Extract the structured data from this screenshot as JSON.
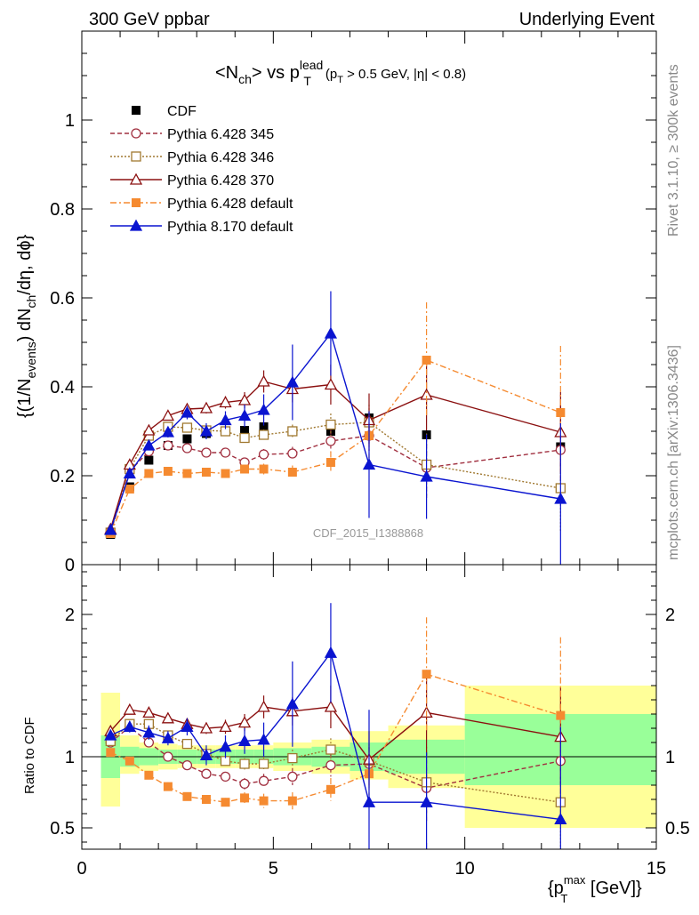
{
  "header": {
    "left": "300 GeV ppbar",
    "right": "Underlying Event"
  },
  "side": {
    "rivet": "Rivet 3.1.10, ≥ 300k events",
    "mcplots": "mcplots.cern.ch [arXiv:1306.3436]"
  },
  "watermark": "CDF_2015_I1388868",
  "colors": {
    "band_inner": "#99ff99",
    "band_outer": "#ffff99"
  },
  "chart_data": [
    {
      "type": "line",
      "title": {
        "main": "<N",
        "sub1": "ch",
        "mid": "> vs p",
        "sup": "lead",
        "sub2": "T",
        "cond": "(p",
        "cond_sub": "T",
        "cond_rest": " > 0.5 GeV, |η| < 0.8)"
      },
      "ylabel": {
        "a": "{(1/N",
        "a_sub": "events",
        "b": ") dN",
        "b_sub": "ch",
        "c": "/dη, dϕ}"
      },
      "xlim": [
        0,
        15
      ],
      "ylim": [
        0,
        1.2
      ],
      "yticks": [
        {
          "v": 0.2,
          "label": "0.2"
        },
        {
          "v": 0.4,
          "label": "0.4"
        },
        {
          "v": 0.6,
          "label": "0.6"
        },
        {
          "v": 0.8,
          "label": "0.8"
        },
        {
          "v": 1.0,
          "label": "1"
        }
      ],
      "ytick_zero": "0",
      "legend_position": "top-left",
      "series": [
        {
          "name": "CDF",
          "color": "#000000",
          "marker": "square-filled",
          "dash": "none",
          "x": [
            0.75,
            1.25,
            1.75,
            2.25,
            2.75,
            3.25,
            3.75,
            4.25,
            4.75,
            5.5,
            6.5,
            7.5,
            9.0,
            12.5
          ],
          "y": [
            0.068,
            0.175,
            0.235,
            0.268,
            0.283,
            0.295,
            0.3,
            0.302,
            0.31,
            0.3,
            0.3,
            0.33,
            0.292,
            0.265
          ],
          "err": [
            0.01,
            0.01,
            0.01,
            0.01,
            0.01,
            0.01,
            0.01,
            0.01,
            0.01,
            0.01,
            0.01,
            0.01,
            0.01,
            0.01
          ]
        },
        {
          "name": "Pythia 6.428 345",
          "color": "#a13040",
          "marker": "circle-open",
          "dash": "5,3",
          "x": [
            0.75,
            1.25,
            1.75,
            2.25,
            2.75,
            3.25,
            3.75,
            4.25,
            4.75,
            5.5,
            6.5,
            7.5,
            9.0,
            12.5
          ],
          "y": [
            0.072,
            0.21,
            0.255,
            0.268,
            0.262,
            0.252,
            0.252,
            0.23,
            0.248,
            0.25,
            0.278,
            0.29,
            0.218,
            0.258
          ],
          "err": [
            0.005,
            0.005,
            0.006,
            0.006,
            0.007,
            0.008,
            0.009,
            0.01,
            0.012,
            0.015,
            0.025,
            0.04,
            0.07,
            0.1
          ]
        },
        {
          "name": "Pythia 6.428 346",
          "color": "#a07830",
          "marker": "square-open",
          "dash": "2,2",
          "x": [
            0.75,
            1.25,
            1.75,
            2.25,
            2.75,
            3.25,
            3.75,
            4.25,
            4.75,
            5.5,
            6.5,
            7.5,
            9.0,
            12.5
          ],
          "y": [
            0.072,
            0.215,
            0.29,
            0.31,
            0.308,
            0.302,
            0.3,
            0.285,
            0.292,
            0.3,
            0.315,
            0.32,
            0.225,
            0.172
          ],
          "err": [
            0.005,
            0.005,
            0.006,
            0.006,
            0.007,
            0.008,
            0.009,
            0.01,
            0.012,
            0.015,
            0.025,
            0.04,
            0.07,
            0.1
          ]
        },
        {
          "name": "Pythia 6.428 370",
          "color": "#8b1010",
          "marker": "triangle-open",
          "dash": "none",
          "x": [
            0.75,
            1.25,
            1.75,
            2.25,
            2.75,
            3.25,
            3.75,
            4.25,
            4.75,
            5.5,
            6.5,
            7.5,
            9.0,
            12.5
          ],
          "y": [
            0.08,
            0.225,
            0.302,
            0.335,
            0.35,
            0.352,
            0.365,
            0.37,
            0.412,
            0.395,
            0.405,
            0.325,
            0.382,
            0.298
          ],
          "err": [
            0.005,
            0.006,
            0.007,
            0.008,
            0.01,
            0.012,
            0.014,
            0.018,
            0.025,
            0.03,
            0.045,
            0.06,
            0.08,
            0.09
          ]
        },
        {
          "name": "Pythia 6.428 default",
          "color": "#f58a30",
          "marker": "square-filled",
          "dash": "7,3,2,3",
          "x": [
            0.75,
            1.25,
            1.75,
            2.25,
            2.75,
            3.25,
            3.75,
            4.25,
            4.75,
            5.5,
            6.5,
            7.5,
            9.0,
            12.5
          ],
          "y": [
            0.07,
            0.17,
            0.205,
            0.21,
            0.205,
            0.208,
            0.205,
            0.215,
            0.215,
            0.208,
            0.23,
            0.29,
            0.46,
            0.342
          ],
          "err": [
            0.005,
            0.005,
            0.006,
            0.006,
            0.007,
            0.008,
            0.009,
            0.01,
            0.012,
            0.015,
            0.025,
            0.05,
            0.13,
            0.15
          ]
        },
        {
          "name": "Pythia 8.170 default",
          "color": "#0a14d0",
          "marker": "triangle-filled",
          "dash": "none",
          "x": [
            0.75,
            1.25,
            1.75,
            2.25,
            2.75,
            3.25,
            3.75,
            4.25,
            4.75,
            5.5,
            6.5,
            7.5,
            9.0,
            12.5
          ],
          "y": [
            0.078,
            0.205,
            0.268,
            0.298,
            0.342,
            0.3,
            0.325,
            0.335,
            0.348,
            0.41,
            0.52,
            0.225,
            0.198,
            0.148
          ],
          "err": [
            0.006,
            0.008,
            0.01,
            0.012,
            0.015,
            0.018,
            0.02,
            0.025,
            0.035,
            0.085,
            0.095,
            0.12,
            0.095,
            0.17
          ]
        }
      ]
    },
    {
      "type": "line",
      "ylabel": "Ratio to CDF",
      "xlabel": {
        "a": "{p",
        "sub": "T",
        "sup": "max",
        "b": " [GeV]}"
      },
      "xlim": [
        0,
        15
      ],
      "ylim": [
        0.35,
        2.35
      ],
      "xticks": [
        {
          "v": 0,
          "label": "0"
        },
        {
          "v": 5,
          "label": "5"
        },
        {
          "v": 10,
          "label": "10"
        },
        {
          "v": 15,
          "label": "15"
        }
      ],
      "yticks": [
        {
          "v": 0.5,
          "label": "0.5"
        },
        {
          "v": 1,
          "label": "1"
        },
        {
          "v": 2,
          "label": "2"
        }
      ],
      "bands": [
        {
          "x0": 0.5,
          "x1": 1.0,
          "inner": [
            0.85,
            1.15
          ],
          "outer": [
            0.65,
            1.45
          ]
        },
        {
          "x0": 1.0,
          "x1": 1.5,
          "inner": [
            0.93,
            1.07
          ],
          "outer": [
            0.88,
            1.15
          ]
        },
        {
          "x0": 1.5,
          "x1": 2.0,
          "inner": [
            0.94,
            1.06
          ],
          "outer": [
            0.9,
            1.1
          ]
        },
        {
          "x0": 2.0,
          "x1": 2.5,
          "inner": [
            0.95,
            1.05
          ],
          "outer": [
            0.91,
            1.09
          ]
        },
        {
          "x0": 2.5,
          "x1": 3.0,
          "inner": [
            0.95,
            1.05
          ],
          "outer": [
            0.92,
            1.08
          ]
        },
        {
          "x0": 3.0,
          "x1": 3.5,
          "inner": [
            0.95,
            1.05
          ],
          "outer": [
            0.92,
            1.08
          ]
        },
        {
          "x0": 3.5,
          "x1": 4.0,
          "inner": [
            0.95,
            1.05
          ],
          "outer": [
            0.92,
            1.08
          ]
        },
        {
          "x0": 4.0,
          "x1": 4.5,
          "inner": [
            0.95,
            1.05
          ],
          "outer": [
            0.92,
            1.08
          ]
        },
        {
          "x0": 4.5,
          "x1": 5.0,
          "inner": [
            0.95,
            1.05
          ],
          "outer": [
            0.92,
            1.08
          ]
        },
        {
          "x0": 5.0,
          "x1": 6.0,
          "inner": [
            0.94,
            1.06
          ],
          "outer": [
            0.9,
            1.1
          ]
        },
        {
          "x0": 6.0,
          "x1": 7.0,
          "inner": [
            0.93,
            1.07
          ],
          "outer": [
            0.88,
            1.12
          ]
        },
        {
          "x0": 7.0,
          "x1": 8.0,
          "inner": [
            0.9,
            1.1
          ],
          "outer": [
            0.84,
            1.18
          ]
        },
        {
          "x0": 8.0,
          "x1": 10.0,
          "inner": [
            0.88,
            1.12
          ],
          "outer": [
            0.78,
            1.22
          ]
        },
        {
          "x0": 10.0,
          "x1": 15.0,
          "inner": [
            0.8,
            1.3
          ],
          "outer": [
            0.5,
            1.5
          ]
        }
      ],
      "series": [
        {
          "name": "Pythia 6.428 345",
          "color": "#a13040",
          "marker": "circle-open",
          "dash": "5,3",
          "x": [
            0.75,
            1.25,
            1.75,
            2.25,
            2.75,
            3.25,
            3.75,
            4.25,
            4.75,
            5.5,
            6.5,
            7.5,
            9.0,
            12.5
          ],
          "y": [
            1.1,
            1.21,
            1.1,
            1.0,
            0.94,
            0.88,
            0.86,
            0.81,
            0.83,
            0.86,
            0.94,
            0.95,
            0.78,
            0.97
          ],
          "err": [
            0.03,
            0.03,
            0.03,
            0.03,
            0.03,
            0.03,
            0.03,
            0.04,
            0.05,
            0.06,
            0.08,
            0.12,
            0.25,
            0.4
          ]
        },
        {
          "name": "Pythia 6.428 346",
          "color": "#a07830",
          "marker": "square-open",
          "dash": "2,2",
          "x": [
            0.75,
            1.25,
            1.75,
            2.25,
            2.75,
            3.25,
            3.75,
            4.25,
            4.75,
            5.5,
            6.5,
            7.5,
            9.0,
            12.5
          ],
          "y": [
            1.11,
            1.23,
            1.23,
            1.15,
            1.09,
            1.02,
            0.97,
            0.95,
            0.95,
            0.99,
            1.05,
            0.97,
            0.82,
            0.68
          ],
          "err": [
            0.03,
            0.03,
            0.03,
            0.03,
            0.03,
            0.03,
            0.03,
            0.04,
            0.05,
            0.06,
            0.08,
            0.12,
            0.25,
            0.4
          ]
        },
        {
          "name": "Pythia 6.428 370",
          "color": "#8b1010",
          "marker": "triangle-open",
          "dash": "none",
          "x": [
            0.75,
            1.25,
            1.75,
            2.25,
            2.75,
            3.25,
            3.75,
            4.25,
            4.75,
            5.5,
            6.5,
            7.5,
            9.0,
            12.5
          ],
          "y": [
            1.18,
            1.33,
            1.31,
            1.27,
            1.23,
            1.2,
            1.21,
            1.24,
            1.35,
            1.32,
            1.35,
            0.98,
            1.31,
            1.14
          ],
          "err": [
            0.03,
            0.03,
            0.03,
            0.03,
            0.04,
            0.04,
            0.05,
            0.06,
            0.08,
            0.1,
            0.15,
            0.2,
            0.3,
            0.35
          ]
        },
        {
          "name": "Pythia 6.428 default",
          "color": "#f58a30",
          "marker": "square-filled",
          "dash": "7,3,2,3",
          "x": [
            0.75,
            1.25,
            1.75,
            2.25,
            2.75,
            3.25,
            3.75,
            4.25,
            4.75,
            5.5,
            6.5,
            7.5,
            9.0,
            12.5
          ],
          "y": [
            1.03,
            0.97,
            0.87,
            0.79,
            0.72,
            0.7,
            0.68,
            0.71,
            0.69,
            0.69,
            0.77,
            0.88,
            1.58,
            1.29
          ],
          "err": [
            0.03,
            0.03,
            0.03,
            0.03,
            0.03,
            0.03,
            0.03,
            0.04,
            0.05,
            0.06,
            0.08,
            0.15,
            0.4,
            0.55
          ]
        },
        {
          "name": "Pythia 8.170 default",
          "color": "#0a14d0",
          "marker": "triangle-filled",
          "dash": "none",
          "x": [
            0.75,
            1.25,
            1.75,
            2.25,
            2.75,
            3.25,
            3.75,
            4.25,
            4.75,
            5.5,
            6.5,
            7.5,
            9.0,
            12.5
          ],
          "y": [
            1.15,
            1.21,
            1.17,
            1.13,
            1.21,
            1.01,
            1.07,
            1.11,
            1.12,
            1.37,
            1.73,
            0.68,
            0.68,
            0.56
          ],
          "err": [
            0.03,
            0.04,
            0.05,
            0.05,
            0.06,
            0.07,
            0.08,
            0.09,
            0.12,
            0.3,
            0.35,
            0.65,
            0.35,
            0.65
          ]
        }
      ]
    }
  ]
}
